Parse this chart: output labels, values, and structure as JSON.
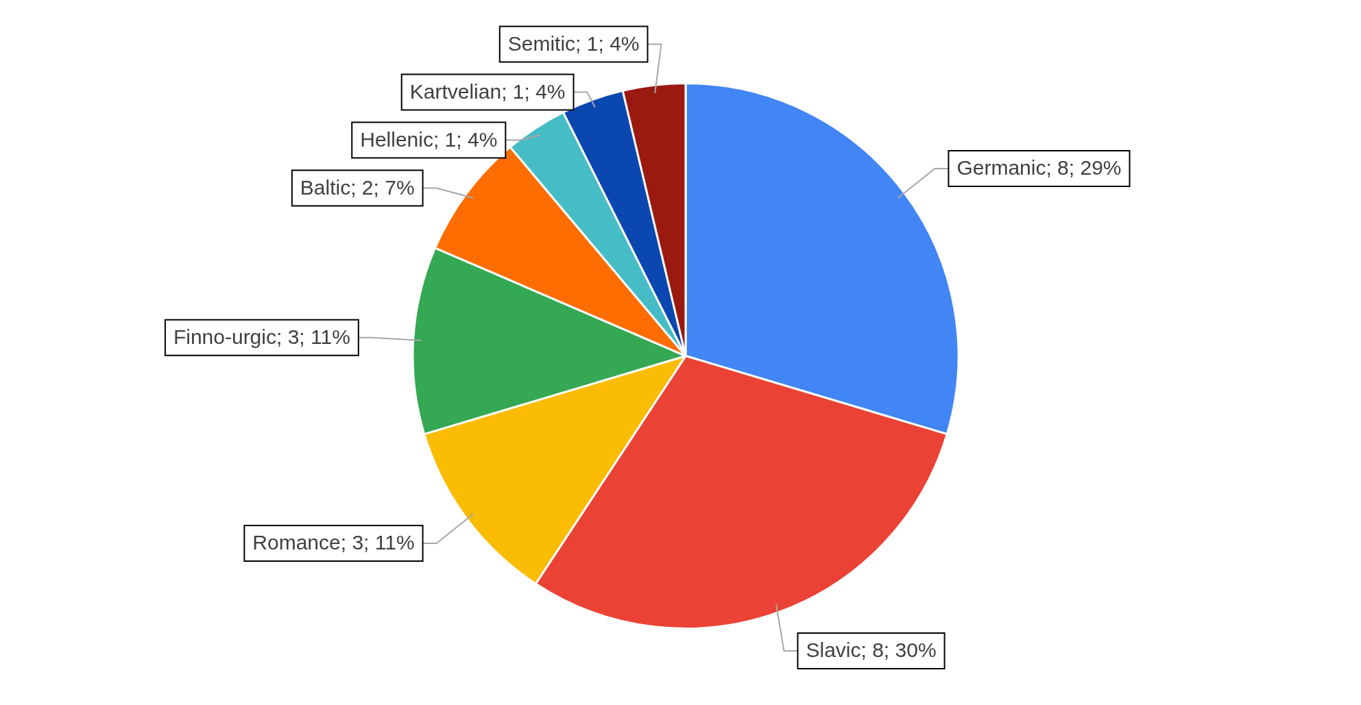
{
  "chart_data": {
    "type": "pie",
    "categories": [
      "Germanic",
      "Slavic",
      "Romance",
      "Finno-urgic",
      "Baltic",
      "Hellenic",
      "Kartvelian",
      "Semitic"
    ],
    "values": [
      8,
      8,
      3,
      3,
      2,
      1,
      1,
      1
    ],
    "value_labels": [
      "8; 29%",
      "8; 30%",
      "3; 11%",
      "3; 11%",
      "2; 7%",
      "1; 4%",
      "1; 4%",
      "1; 4%"
    ],
    "colors": [
      "#4285f4",
      "#ea4335",
      "#fbbc04",
      "#34a853",
      "#ff6d01",
      "#46bdc6",
      "#0b47b0",
      "#9a1a10"
    ],
    "legend": false
  }
}
